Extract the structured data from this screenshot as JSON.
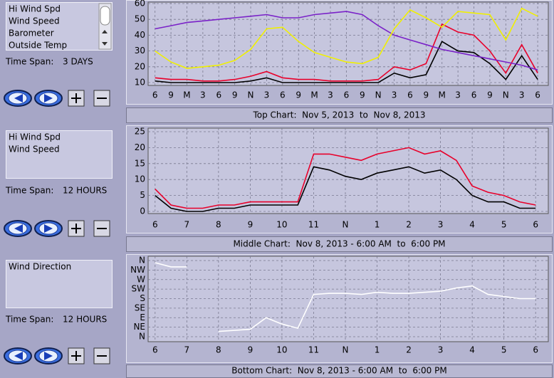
{
  "chart_data": [
    {
      "type": "line",
      "title": "Top Chart:  Nov 5, 2013  to  Nov 8, 2013",
      "x": [
        0,
        3,
        6,
        9,
        12,
        15,
        18,
        21,
        24,
        27,
        30,
        33,
        36,
        39,
        42,
        45,
        48,
        51,
        54,
        57,
        60,
        63,
        66,
        69,
        72
      ],
      "series": [
        {
          "name": "Hi Wind Spd",
          "color": "#e8002a",
          "values": [
            13,
            12,
            12,
            11,
            11,
            12,
            14,
            17,
            13,
            12,
            12,
            11,
            11,
            11,
            12,
            20,
            18,
            22,
            47,
            42,
            40,
            30,
            16,
            34,
            16
          ]
        },
        {
          "name": "Wind Speed",
          "color": "#000000",
          "values": [
            11,
            10,
            10,
            10,
            10,
            10,
            11,
            13,
            10,
            10,
            10,
            10,
            10,
            10,
            10,
            16,
            13,
            15,
            36,
            30,
            29,
            22,
            12,
            27,
            12
          ]
        },
        {
          "name": "Barometer",
          "color": "#7a22c8",
          "values": [
            44,
            46,
            48,
            49,
            50,
            51,
            52,
            53,
            51,
            51,
            53,
            54,
            55,
            53,
            46,
            40,
            37,
            34,
            31,
            29,
            27,
            25,
            23,
            21,
            18
          ]
        },
        {
          "name": "Outside Temp",
          "color": "#f0f000",
          "values": [
            30,
            23,
            19,
            20,
            21,
            24,
            31,
            44,
            45,
            36,
            29,
            26,
            23,
            22,
            26,
            44,
            56,
            51,
            45,
            55,
            54,
            53,
            37,
            57,
            52
          ]
        }
      ],
      "xlim": [
        -1.3,
        74
      ],
      "ylim": [
        10,
        60
      ],
      "xticks": [
        {
          "value": 0,
          "label": "6"
        },
        {
          "value": 3,
          "label": "9"
        },
        {
          "value": 6,
          "label": "M"
        },
        {
          "value": 9,
          "label": "3"
        },
        {
          "value": 12,
          "label": "6"
        },
        {
          "value": 15,
          "label": "9"
        },
        {
          "value": 18,
          "label": "N"
        },
        {
          "value": 21,
          "label": "3"
        },
        {
          "value": 24,
          "label": "6"
        },
        {
          "value": 27,
          "label": "9"
        },
        {
          "value": 30,
          "label": "M"
        },
        {
          "value": 33,
          "label": "3"
        },
        {
          "value": 36,
          "label": "6"
        },
        {
          "value": 39,
          "label": "9"
        },
        {
          "value": 42,
          "label": "N"
        },
        {
          "value": 45,
          "label": "3"
        },
        {
          "value": 48,
          "label": "6"
        },
        {
          "value": 51,
          "label": "9"
        },
        {
          "value": 54,
          "label": "M"
        },
        {
          "value": 57,
          "label": "3"
        },
        {
          "value": 60,
          "label": "6"
        },
        {
          "value": 63,
          "label": "9"
        },
        {
          "value": 66,
          "label": "N"
        },
        {
          "value": 69,
          "label": "3"
        },
        {
          "value": 72,
          "label": "6"
        }
      ],
      "yticks": [
        10,
        20,
        30,
        40,
        50,
        60
      ],
      "grid": true
    },
    {
      "type": "line",
      "title": "Middle Chart:  Nov 8, 2013 - 6:00 AM  to  6:00 PM",
      "x": [
        6,
        6.5,
        7,
        7.5,
        8,
        8.5,
        9,
        9.5,
        10,
        10.5,
        11,
        11.5,
        12,
        12.5,
        13,
        13.5,
        14,
        14.5,
        15,
        15.5,
        16,
        16.5,
        17,
        17.5,
        18
      ],
      "series": [
        {
          "name": "Hi Wind Spd",
          "color": "#e8002a",
          "values": [
            7,
            2,
            1,
            1,
            2,
            2,
            3,
            3,
            3,
            3,
            18,
            18,
            17,
            16,
            18,
            19,
            20,
            18,
            19,
            16,
            8,
            6,
            5,
            3,
            2
          ]
        },
        {
          "name": "Wind Speed",
          "color": "#000000",
          "values": [
            5,
            1,
            0,
            0,
            1,
            1,
            2,
            2,
            2,
            2,
            14,
            13,
            11,
            10,
            12,
            13,
            14,
            12,
            13,
            10,
            5,
            3,
            3,
            1,
            1
          ]
        }
      ],
      "xlim": [
        5.78,
        18.4
      ],
      "ylim": [
        0,
        25
      ],
      "xticks": [
        6,
        7,
        8,
        9,
        10,
        11,
        {
          "value": 12,
          "label": "N"
        },
        {
          "value": 13,
          "label": "1"
        },
        {
          "value": 14,
          "label": "2"
        },
        {
          "value": 15,
          "label": "3"
        },
        {
          "value": 16,
          "label": "4"
        },
        {
          "value": 17,
          "label": "5"
        },
        {
          "value": 18,
          "label": "6"
        }
      ],
      "yticks": [
        0,
        5,
        10,
        15,
        20,
        25
      ],
      "grid": true
    },
    {
      "type": "line",
      "title": "Bottom Chart:  Nov 8, 2013 - 6:00 AM  to  6:00 PM",
      "x": [
        6,
        6.5,
        7,
        7.5,
        8,
        8.5,
        9,
        9.5,
        10,
        10.5,
        11,
        11.5,
        12,
        12.5,
        13,
        13.5,
        14,
        14.5,
        15,
        15.5,
        16,
        16.5,
        17,
        17.5,
        18
      ],
      "series": [
        {
          "name": "Wind Direction",
          "color": "#ffffff",
          "values": [
            350,
            330,
            330,
            null,
            25,
            30,
            35,
            90,
            60,
            40,
            200,
            205,
            205,
            200,
            210,
            205,
            205,
            210,
            215,
            230,
            240,
            200,
            190,
            180,
            180
          ]
        }
      ],
      "xlim": [
        5.78,
        18.4
      ],
      "ylim": [
        0,
        360
      ],
      "xticks": [
        6,
        7,
        8,
        9,
        10,
        11,
        {
          "value": 12,
          "label": "N"
        },
        {
          "value": 13,
          "label": "1"
        },
        {
          "value": 14,
          "label": "2"
        },
        {
          "value": 15,
          "label": "3"
        },
        {
          "value": 16,
          "label": "4"
        },
        {
          "value": 17,
          "label": "5"
        },
        {
          "value": 18,
          "label": "6"
        }
      ],
      "yticks": [
        {
          "value": 0,
          "label": "N"
        },
        {
          "value": 45,
          "label": "NE"
        },
        {
          "value": 90,
          "label": "E"
        },
        {
          "value": 135,
          "label": "SE"
        },
        {
          "value": 180,
          "label": "S"
        },
        {
          "value": 225,
          "label": "SW"
        },
        {
          "value": 270,
          "label": "W"
        },
        {
          "value": 315,
          "label": "NW"
        },
        {
          "value": 360,
          "label": "N"
        }
      ],
      "grid": true
    }
  ],
  "sidebar": [
    {
      "time_span_label": "Time Span:",
      "time_span": "3 DAYS"
    },
    {
      "time_span_label": "Time Span:",
      "time_span": "12 HOURS"
    },
    {
      "time_span_label": "Time Span:",
      "time_span": "12 HOURS"
    }
  ]
}
